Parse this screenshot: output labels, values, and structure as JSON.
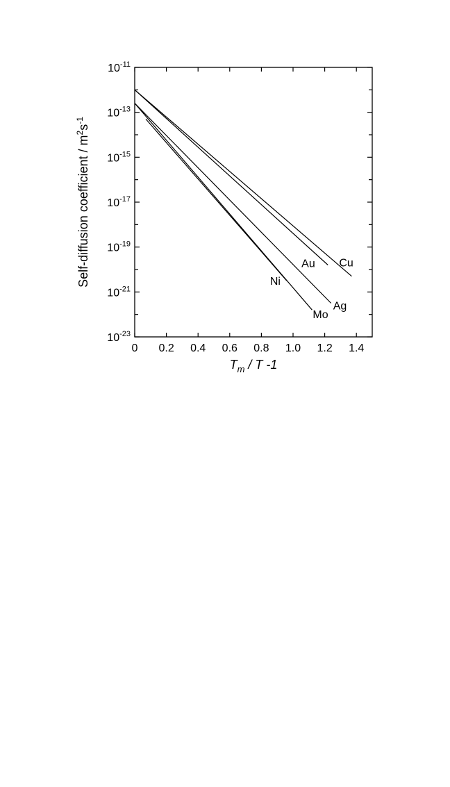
{
  "chart_data": {
    "type": "line",
    "xlabel": {
      "main": "T",
      "sub": "m",
      "rest": " / T -1"
    },
    "ylabel": {
      "main": "Self-diffusion coefficient / m",
      "sup1": "2",
      "mid": "s",
      "sup2": "-1"
    },
    "x_range": [
      0,
      1.5
    ],
    "y_range_log10": [
      -23,
      -11
    ],
    "y_scale": "log",
    "grid": false,
    "x_ticks": [
      {
        "value": 0,
        "label": "0"
      },
      {
        "value": 0.2,
        "label": "0.2"
      },
      {
        "value": 0.4,
        "label": "0.4"
      },
      {
        "value": 0.6,
        "label": "0.6"
      },
      {
        "value": 0.8,
        "label": "0.8"
      },
      {
        "value": 1.0,
        "label": "1.0"
      },
      {
        "value": 1.2,
        "label": "1.2"
      },
      {
        "value": 1.4,
        "label": "1.4"
      }
    ],
    "y_ticks": [
      {
        "exp": -11,
        "base": "10",
        "sup": "-11"
      },
      {
        "exp": -13,
        "base": "10",
        "sup": "-13"
      },
      {
        "exp": -15,
        "base": "10",
        "sup": "-15"
      },
      {
        "exp": -17,
        "base": "10",
        "sup": "-17"
      },
      {
        "exp": -19,
        "base": "10",
        "sup": "-19"
      },
      {
        "exp": -21,
        "base": "10",
        "sup": "-21"
      },
      {
        "exp": -23,
        "base": "10",
        "sup": "-23"
      }
    ],
    "series": [
      {
        "name": "Cu",
        "x": [
          0.0,
          1.37
        ],
        "log10_y": [
          -12.0,
          -20.3
        ]
      },
      {
        "name": "Au",
        "x": [
          0.0,
          1.22
        ],
        "log10_y": [
          -12.0,
          -19.8
        ]
      },
      {
        "name": "Ag",
        "x": [
          0.0,
          1.24
        ],
        "log10_y": [
          -12.6,
          -21.5
        ]
      },
      {
        "name": "Mo",
        "x": [
          0.0,
          1.12
        ],
        "log10_y": [
          -12.6,
          -21.8
        ]
      },
      {
        "name": "Ni",
        "x": [
          0.07,
          0.96
        ],
        "log10_y": [
          -13.3,
          -20.5
        ]
      }
    ]
  }
}
